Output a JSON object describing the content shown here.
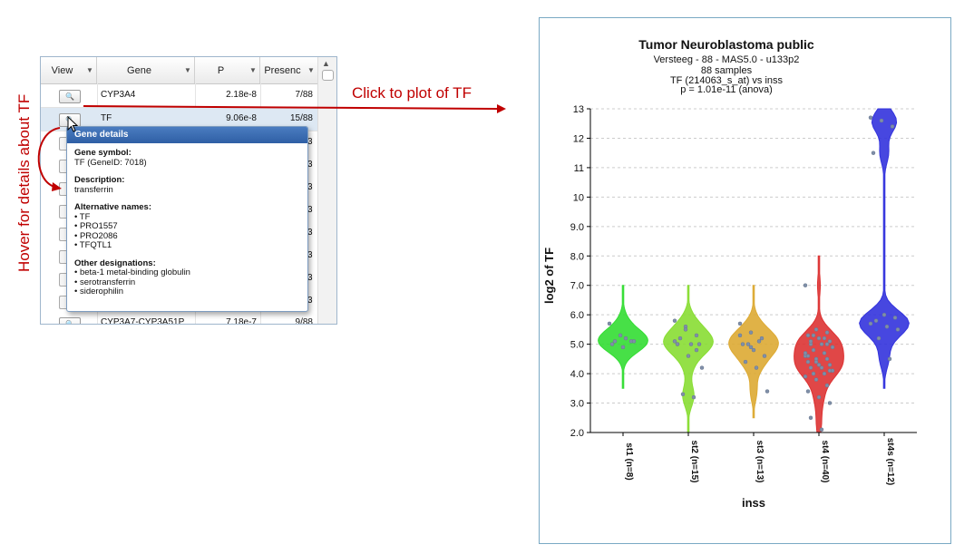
{
  "table": {
    "columns": [
      "View",
      "Gene",
      "P",
      "Presenc"
    ],
    "rows": [
      {
        "gene": "CYP3A4",
        "p": "2.18e-8",
        "presence": "7/88"
      },
      {
        "gene": "TF",
        "p": "9.06e-8",
        "presence": "15/88"
      }
    ],
    "partial_row": {
      "gene": "CYP3A7-CYP3A51P",
      "p": "7.18e-7",
      "presence": "9/88"
    },
    "hidden_presence_digits": [
      "3",
      "3",
      "3",
      "3",
      "3",
      "3",
      "3",
      "3"
    ]
  },
  "tooltip": {
    "title": "Gene details",
    "gene_symbol_label": "Gene symbol:",
    "gene_symbol_value": "TF (GeneID: 7018)",
    "description_label": "Description:",
    "description_value": "transferrin",
    "alt_names_label": "Alternative names:",
    "alt_names": [
      "• TF",
      "• PRO1557",
      "• PRO2086",
      "• TFQTL1"
    ],
    "other_label": "Other designations:",
    "other_designations": [
      "• beta-1 metal-binding globulin",
      "• serotransferrin",
      "• siderophilin"
    ]
  },
  "annotations": {
    "hover_note": "Hover for details about TF",
    "click_note": "Click to plot of TF",
    "color": "#c00000"
  },
  "chart_data": {
    "type": "violin",
    "title": "Tumor Neuroblastoma public",
    "subtitle_lines": [
      "Versteeg - 88 - MAS5.0 - u133p2",
      "88 samples",
      "TF (214063_s_at) vs inss",
      "p = 1.01e-11 (anova)"
    ],
    "xlabel": "inss",
    "ylabel": "log2 of TF",
    "ylim": [
      2.0,
      13.0
    ],
    "yticks": [
      "2.0",
      "3.0",
      "4.0",
      "5.0",
      "6.0",
      "7.0",
      "8.0",
      "9.0",
      "10",
      "11",
      "12",
      "13"
    ],
    "grid": true,
    "categories": [
      "st1 (n=8)",
      "st2 (n=15)",
      "st3 (n=13)",
      "st4 (n=40)",
      "st4s (n=12)"
    ],
    "colors": [
      "#33dd33",
      "#88dd33",
      "#ddaa33",
      "#dd3333",
      "#3333dd"
    ],
    "ranges": [
      [
        3.5,
        7.0
      ],
      [
        2.0,
        7.0
      ],
      [
        2.5,
        7.0
      ],
      [
        2.0,
        8.0
      ],
      [
        3.5,
        13.0
      ]
    ],
    "points": [
      [
        5.7,
        5.3,
        5.1,
        5.0,
        4.9,
        5.1,
        5.1,
        5.2
      ],
      [
        5.8,
        5.6,
        5.3,
        5.0,
        4.6,
        5.0,
        5.2,
        5.0,
        4.2,
        3.3,
        3.2,
        5.1,
        5.5,
        4.8,
        5.0
      ],
      [
        5.7,
        5.4,
        5.2,
        5.0,
        4.8,
        4.6,
        4.4,
        4.2,
        3.4,
        5.0,
        5.1,
        5.3,
        4.9
      ],
      [
        7.0,
        5.5,
        5.4,
        5.3,
        5.2,
        5.1,
        5.0,
        5.0,
        4.9,
        4.8,
        4.7,
        4.6,
        4.5,
        4.5,
        4.4,
        4.3,
        4.3,
        4.2,
        4.2,
        4.1,
        4.0,
        4.0,
        3.9,
        3.8,
        3.6,
        3.4,
        3.2,
        3.0,
        2.5,
        2.1,
        4.9,
        5.3,
        5.2,
        4.7,
        4.4,
        5.0,
        4.6,
        4.3,
        4.1,
        5.1
      ],
      [
        12.7,
        12.6,
        12.4,
        11.5,
        6.0,
        5.9,
        5.8,
        5.6,
        5.5,
        5.2,
        4.5,
        5.7
      ]
    ]
  }
}
